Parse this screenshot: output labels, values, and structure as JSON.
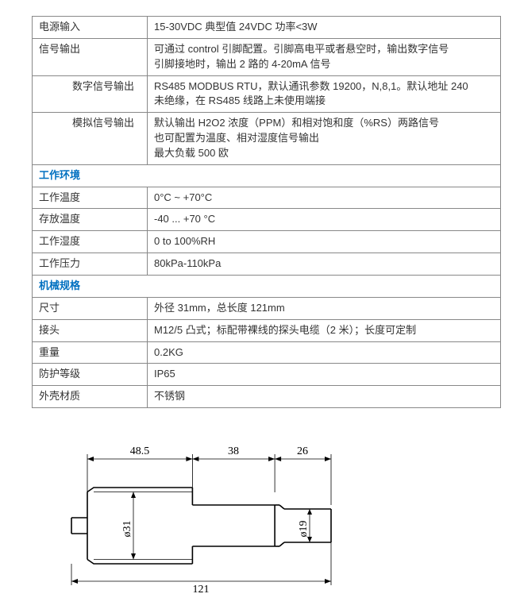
{
  "table": {
    "rows": [
      {
        "label": "电源输入",
        "value": "15-30VDC 典型值 24VDC    功率<3W",
        "type": "data"
      },
      {
        "label": "信号输出",
        "value": "可通过 control 引脚配置。引脚高电平或者悬空时，输出数字信号\n引脚接地时，输出 2 路的 4-20mA 信号",
        "type": "data"
      },
      {
        "label": "数字信号输出",
        "value": "RS485 MODBUS RTU，默认通讯参数 19200，N,8,1。默认地址 240\n未绝缘，在 RS485 线路上未使用端接",
        "type": "data",
        "indent": true
      },
      {
        "label": "模拟信号输出",
        "value": "默认输出 H2O2 浓度（PPM）和相对饱和度（%RS）两路信号\n也可配置为温度、相对湿度信号输出\n最大负载 500 欧",
        "type": "data",
        "indent": true
      },
      {
        "label": "工作环境",
        "type": "section"
      },
      {
        "label": "工作温度",
        "value": "0°C ~ +70°C",
        "type": "data"
      },
      {
        "label": "存放温度",
        "value": "-40 ... +70 °C",
        "type": "data"
      },
      {
        "label": "工作湿度",
        "value": "0 to 100%RH",
        "type": "data"
      },
      {
        "label": "工作压力",
        "value": "80kPa-110kPa",
        "type": "data"
      },
      {
        "label": "机械规格",
        "type": "section"
      },
      {
        "label": "尺寸",
        "value": "外径 31mm，总长度 121mm",
        "type": "data"
      },
      {
        "label": "接头",
        "value": "M12/5 凸式；标配带裸线的探头电缆（2 米）；长度可定制",
        "type": "data"
      },
      {
        "label": "重量",
        "value": "0.2KG",
        "type": "data"
      },
      {
        "label": "防护等级",
        "value": "IP65",
        "type": "data"
      },
      {
        "label": "外壳材质",
        "value": "不锈钢",
        "type": "data"
      }
    ],
    "section_color": "#0070c0",
    "border_color": "#888888"
  },
  "diagram": {
    "type": "engineering-outline",
    "units": "mm",
    "top_dimensions": [
      {
        "label": "48.5",
        "value": 48.5
      },
      {
        "label": "38",
        "value": 38
      },
      {
        "label": "26",
        "value": 26
      }
    ],
    "bottom_dimension": {
      "label": "121",
      "value": 121
    },
    "diameter_labels": {
      "left": "ø31",
      "right": "ø19"
    },
    "stroke_color": "#000000",
    "stroke_width_thin": 0.8,
    "stroke_width_thick": 1.6,
    "font_family": "Times New Roman",
    "font_size_pt": 11
  }
}
